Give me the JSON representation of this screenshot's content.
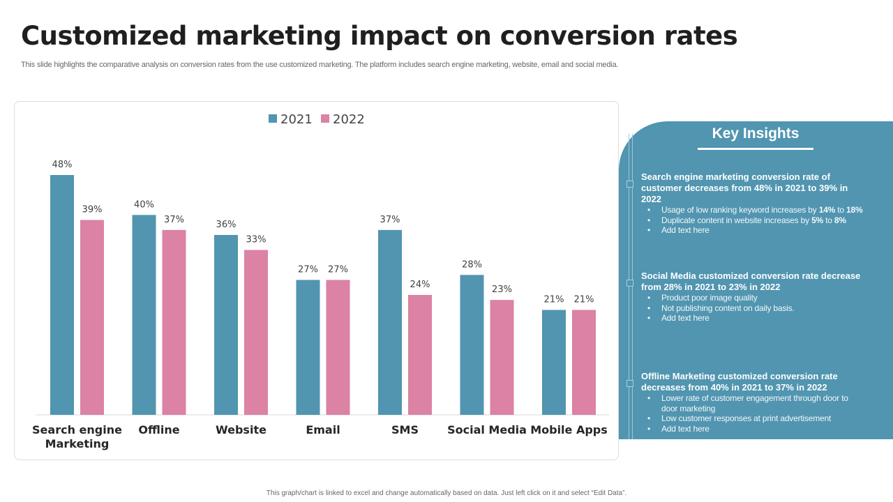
{
  "page": {
    "title": "Customized marketing impact on conversion rates",
    "subtitle": "This slide highlights the comparative analysis on conversion rates from the use customized marketing. The platform includes search engine marketing, website, email and social media.",
    "footer": "This graph/chart is linked to excel and change automatically based on data. Just left click on it and select “Edit Data”."
  },
  "colors": {
    "series_2021": "#5195b0",
    "series_2022": "#db82a5",
    "panel": "#5195b0"
  },
  "chart_data": {
    "type": "bar",
    "title": "",
    "xlabel": "",
    "ylabel": "",
    "ylim": [
      0,
      48
    ],
    "grid": false,
    "legend": "top-center",
    "categories": [
      "Search engine Marketing",
      "Offline",
      "Website",
      "Email",
      "SMS",
      "Social Media",
      "Mobile Apps"
    ],
    "category_lines": [
      [
        "Search engine",
        "Marketing"
      ],
      [
        "Offline"
      ],
      [
        "Website"
      ],
      [
        "Email"
      ],
      [
        "SMS"
      ],
      [
        "Social Media"
      ],
      [
        "Mobile Apps"
      ]
    ],
    "series": [
      {
        "name": "2021",
        "values": [
          48,
          40,
          36,
          27,
          37,
          28,
          21
        ]
      },
      {
        "name": "2022",
        "values": [
          39,
          37,
          33,
          27,
          24,
          23,
          21
        ]
      }
    ],
    "value_suffix": "%"
  },
  "insights": {
    "title": "Key Insights",
    "items": [
      {
        "heading": "Search engine marketing conversion rate of customer decreases from 48% in 2021 to 39% in 2022",
        "bullets": [
          {
            "text": "Usage of low ranking keyword increases by ",
            "bold1": "14%",
            "mid": " to ",
            "bold2": "18%"
          },
          {
            "text": "Duplicate content in website increases by ",
            "bold1": "5%",
            "mid": " to ",
            "bold2": "8%"
          },
          {
            "text": "Add text here"
          }
        ]
      },
      {
        "heading": "Social Media customized conversion rate decrease from 28% in 2021 to 23% in 2022",
        "bullets": [
          {
            "text": "Product poor image quality"
          },
          {
            "text": "Not publishing content on daily basis."
          },
          {
            "text": "Add text here"
          }
        ]
      },
      {
        "heading": "Offline Marketing customized conversion rate decreases from 40% in 2021 to 37% in 2022",
        "bullets": [
          {
            "text": "Lower rate of customer engagement through door to door marketing"
          },
          {
            "text": "Low customer responses at print advertisement"
          },
          {
            "text": "Add text here"
          }
        ]
      }
    ]
  }
}
